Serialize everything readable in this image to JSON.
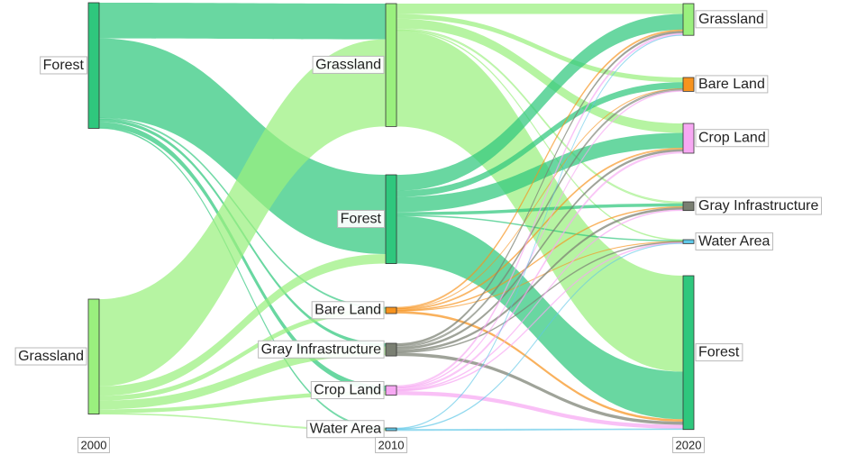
{
  "years": [
    "2000",
    "2010",
    "2020"
  ],
  "colors": {
    "Forest": "#2fc77d",
    "Grassland": "#9af07e",
    "Bare Land": "#f7931e",
    "Gray Infrastructure": "#7a7f72",
    "Crop Land": "#f7a8f3",
    "Water Area": "#5fc8e8"
  },
  "nodes": {
    "2000": [
      {
        "name": "Forest",
        "label": "Forest"
      },
      {
        "name": "Grassland",
        "label": "Grassland"
      }
    ],
    "2010": [
      {
        "name": "Grassland",
        "label": "Grassland"
      },
      {
        "name": "Forest",
        "label": "Forest"
      },
      {
        "name": "Bare Land",
        "label": "Bare Land"
      },
      {
        "name": "Gray Infrastructure",
        "label": "Gray Infrastructure"
      },
      {
        "name": "Crop Land",
        "label": "Crop Land"
      },
      {
        "name": "Water Area",
        "label": "Water Area"
      }
    ],
    "2020": [
      {
        "name": "Grassland",
        "label": "Grassland"
      },
      {
        "name": "Bare Land",
        "label": "Bare Land"
      },
      {
        "name": "Crop Land",
        "label": "Crop Land"
      },
      {
        "name": "Gray Infrastructure",
        "label": "Gray Infrastructure"
      },
      {
        "name": "Water Area",
        "label": "Water Area"
      },
      {
        "name": "Forest",
        "label": "Forest"
      }
    ]
  },
  "flows_2000_2010": [
    {
      "from": "Forest",
      "to": "Grassland",
      "value": 45
    },
    {
      "from": "Forest",
      "to": "Forest",
      "value": 100
    },
    {
      "from": "Forest",
      "to": "Bare Land",
      "value": 1.5
    },
    {
      "from": "Forest",
      "to": "Gray Infrastructure",
      "value": 4
    },
    {
      "from": "Forest",
      "to": "Crop Land",
      "value": 7
    },
    {
      "from": "Forest",
      "to": "Water Area",
      "value": 1
    },
    {
      "from": "Grassland",
      "to": "Grassland",
      "value": 110
    },
    {
      "from": "Grassland",
      "to": "Forest",
      "value": 12
    },
    {
      "from": "Grassland",
      "to": "Bare Land",
      "value": 6
    },
    {
      "from": "Grassland",
      "to": "Gray Infrastructure",
      "value": 11
    },
    {
      "from": "Grassland",
      "to": "Crop Land",
      "value": 5
    },
    {
      "from": "Grassland",
      "to": "Water Area",
      "value": 1
    }
  ],
  "flows_2010_2020": [
    {
      "from": "Grassland",
      "to": "Grassland",
      "value": 13
    },
    {
      "from": "Grassland",
      "to": "Bare Land",
      "value": 6
    },
    {
      "from": "Grassland",
      "to": "Crop Land",
      "value": 12
    },
    {
      "from": "Grassland",
      "to": "Gray Infrastructure",
      "value": 2
    },
    {
      "from": "Grassland",
      "to": "Water Area",
      "value": 1
    },
    {
      "from": "Grassland",
      "to": "Forest",
      "value": 121
    },
    {
      "from": "Forest",
      "to": "Grassland",
      "value": 20
    },
    {
      "from": "Forest",
      "to": "Bare Land",
      "value": 8
    },
    {
      "from": "Forest",
      "to": "Crop Land",
      "value": 19
    },
    {
      "from": "Forest",
      "to": "Gray Infrastructure",
      "value": 4
    },
    {
      "from": "Forest",
      "to": "Water Area",
      "value": 1
    },
    {
      "from": "Forest",
      "to": "Forest",
      "value": 60
    },
    {
      "from": "Bare Land",
      "to": "Grassland",
      "value": 1.5
    },
    {
      "from": "Bare Land",
      "to": "Bare Land",
      "value": 0.5
    },
    {
      "from": "Bare Land",
      "to": "Crop Land",
      "value": 1.5
    },
    {
      "from": "Bare Land",
      "to": "Gray Infrastructure",
      "value": 1
    },
    {
      "from": "Bare Land",
      "to": "Water Area",
      "value": 0.5
    },
    {
      "from": "Bare Land",
      "to": "Forest",
      "value": 3
    },
    {
      "from": "Gray Infrastructure",
      "to": "Grassland",
      "value": 3
    },
    {
      "from": "Gray Infrastructure",
      "to": "Bare Land",
      "value": 2
    },
    {
      "from": "Gray Infrastructure",
      "to": "Crop Land",
      "value": 3
    },
    {
      "from": "Gray Infrastructure",
      "to": "Gray Infrastructure",
      "value": 3
    },
    {
      "from": "Gray Infrastructure",
      "to": "Water Area",
      "value": 1
    },
    {
      "from": "Gray Infrastructure",
      "to": "Forest",
      "value": 4
    },
    {
      "from": "Crop Land",
      "to": "Grassland",
      "value": 2
    },
    {
      "from": "Crop Land",
      "to": "Bare Land",
      "value": 1
    },
    {
      "from": "Crop Land",
      "to": "Crop Land",
      "value": 2
    },
    {
      "from": "Crop Land",
      "to": "Gray Infrastructure",
      "value": 1
    },
    {
      "from": "Crop Land",
      "to": "Water Area",
      "value": 1
    },
    {
      "from": "Crop Land",
      "to": "Forest",
      "value": 5
    },
    {
      "from": "Water Area",
      "to": "Grassland",
      "value": 0.5
    },
    {
      "from": "Water Area",
      "to": "Water Area",
      "value": 0.5
    },
    {
      "from": "Water Area",
      "to": "Forest",
      "value": 1
    }
  ]
}
